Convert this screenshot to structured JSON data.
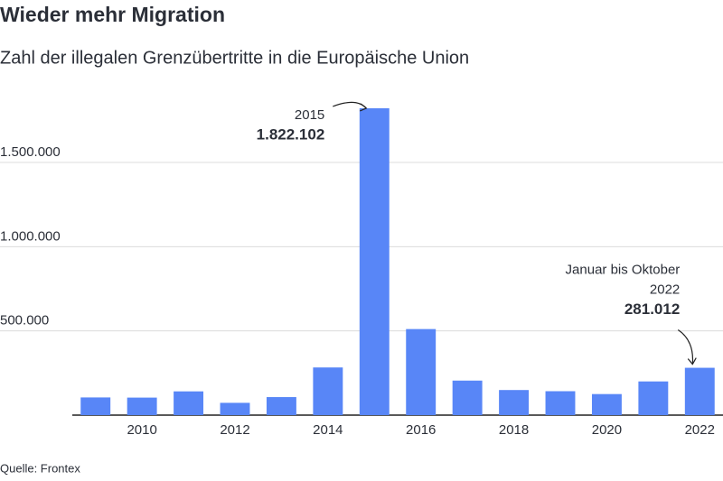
{
  "chart_data": {
    "type": "bar",
    "title": "Wieder mehr Migration",
    "subtitle": "Zahl der illegalen Grenzübertritte in die Europäische Union",
    "source": "Quelle: Frontex",
    "categories": [
      null,
      "2010",
      null,
      "2012",
      null,
      "2014",
      null,
      "2016",
      null,
      "2018",
      null,
      "2020",
      null,
      "2022"
    ],
    "values": [
      105000,
      104000,
      141000,
      73000,
      107000,
      283000,
      1822102,
      511000,
      205000,
      149000,
      142000,
      125000,
      200000,
      281012
    ],
    "value_labels": [
      null,
      null,
      null,
      null,
      null,
      null,
      "1.822.102",
      null,
      null,
      null,
      null,
      null,
      null,
      "281.012"
    ],
    "annotations": [
      null,
      null,
      null,
      null,
      null,
      null,
      [
        "2015"
      ],
      null,
      null,
      null,
      null,
      null,
      null,
      [
        "Januar bis Oktober",
        "2022"
      ]
    ],
    "color": "#5886f7",
    "ylim": [
      0,
      1900000
    ],
    "yticks": [
      {
        "value": 500000,
        "label": "500.000"
      },
      {
        "value": 1000000,
        "label": "1.000.000"
      },
      {
        "value": 1500000,
        "label": "1.500.000"
      }
    ],
    "grid": true
  }
}
